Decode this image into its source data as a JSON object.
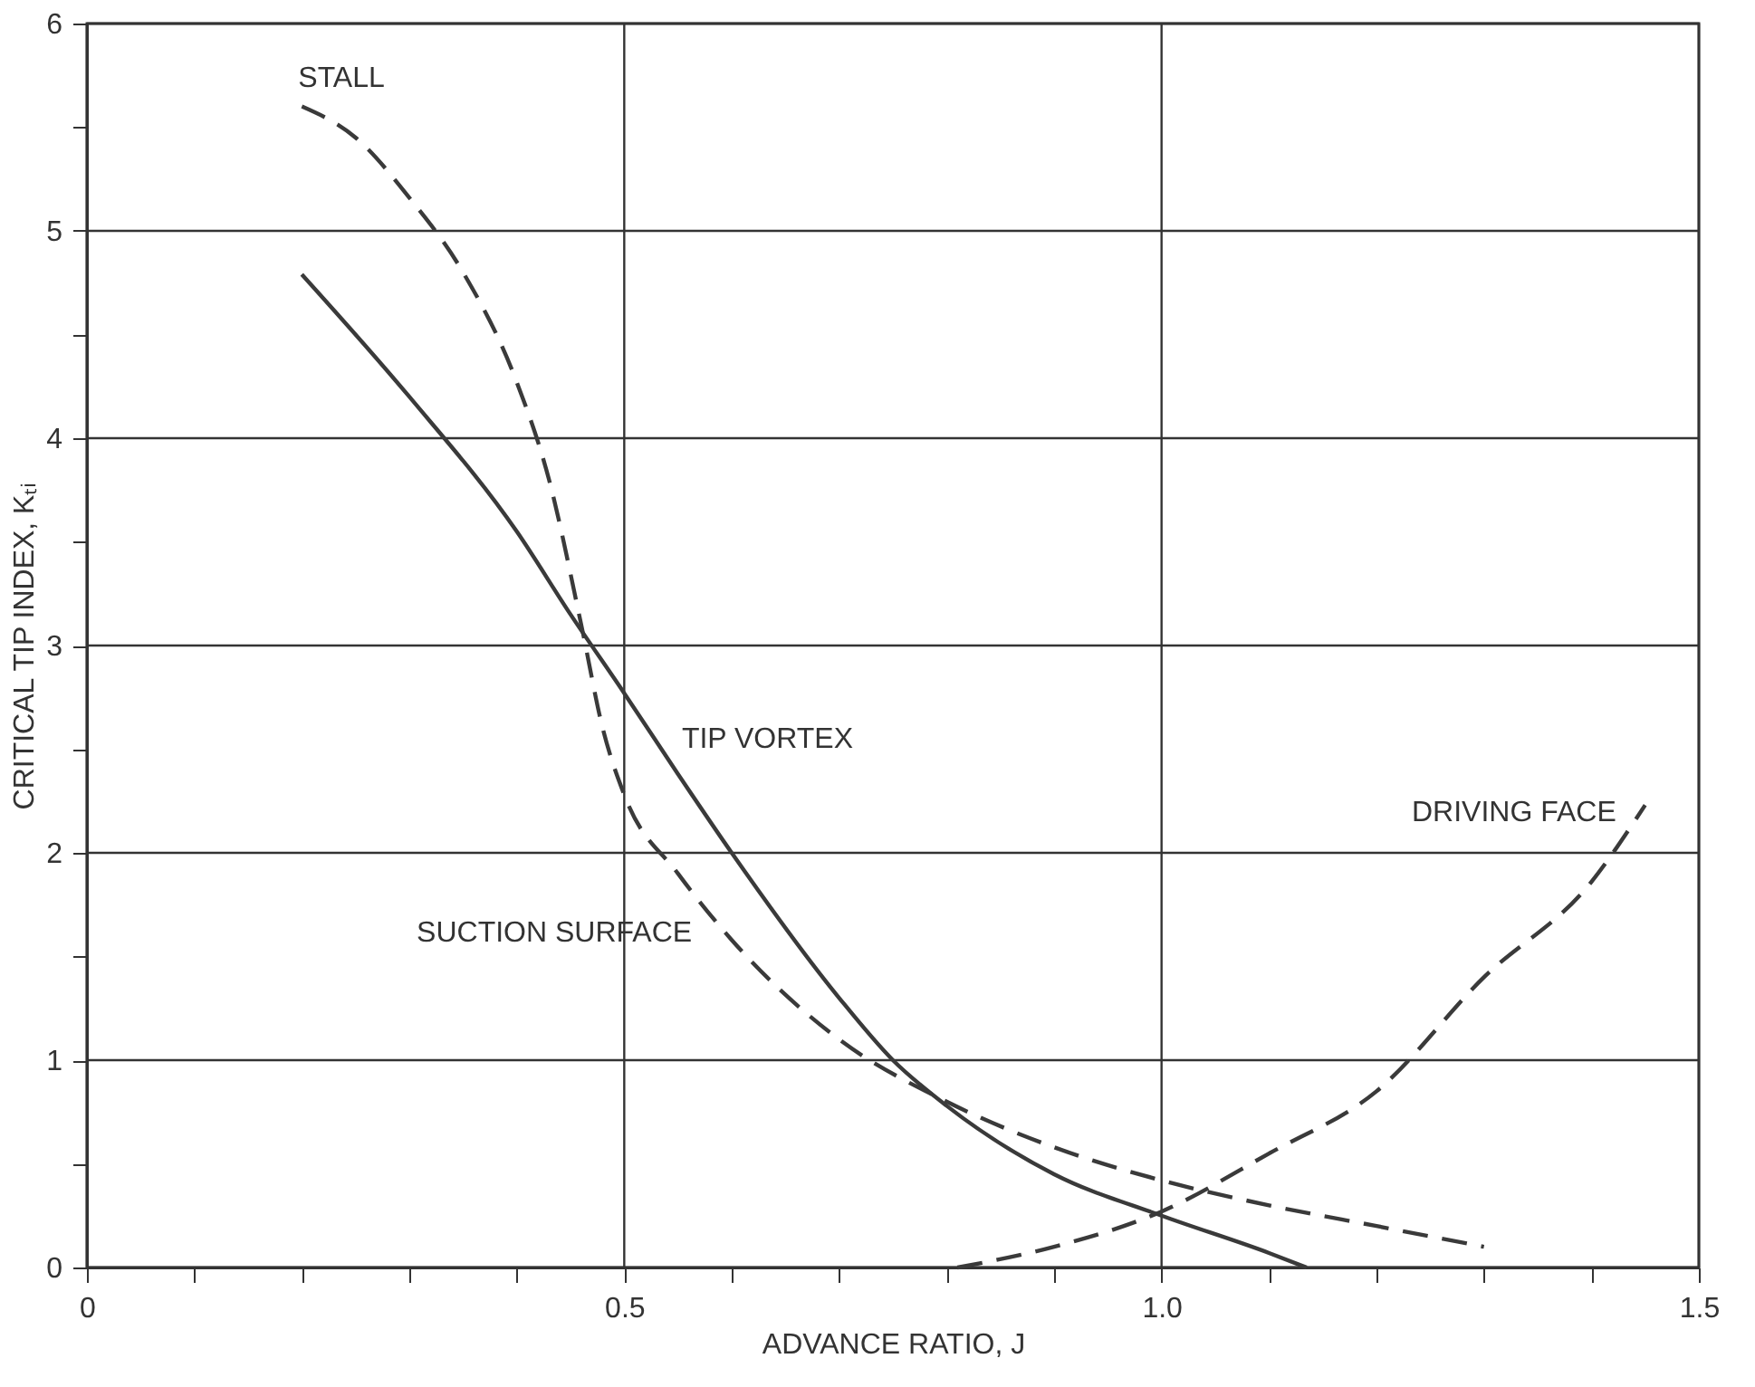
{
  "chart_data": {
    "type": "line",
    "xlabel": "ADVANCE RATIO, J",
    "ylabel": "CRITICAL TIP INDEX, Kₜᵢ",
    "xlim": [
      0,
      1.5
    ],
    "ylim": [
      0,
      6
    ],
    "xticks": [
      0,
      {
        "value": 0.1,
        "label": null
      },
      {
        "value": 0.2,
        "label": null
      },
      {
        "value": 0.3,
        "label": null
      },
      {
        "value": 0.4,
        "label": null
      },
      0.5,
      {
        "value": 0.6,
        "label": null
      },
      {
        "value": 0.7,
        "label": null
      },
      {
        "value": 0.8,
        "label": null
      },
      {
        "value": 0.9,
        "label": null
      },
      {
        "value": 1.0,
        "label": "1.0"
      },
      {
        "value": 1.1,
        "label": null
      },
      {
        "value": 1.2,
        "label": null
      },
      {
        "value": 1.3,
        "label": null
      },
      {
        "value": 1.4,
        "label": null
      },
      1.5
    ],
    "yticks": [
      0,
      {
        "value": 0.5,
        "label": null
      },
      1,
      {
        "value": 1.5,
        "label": null
      },
      2,
      {
        "value": 2.5,
        "label": null
      },
      3,
      {
        "value": 3.5,
        "label": null
      },
      4,
      {
        "value": 4.5,
        "label": null
      },
      5,
      {
        "value": 5.5,
        "label": null
      },
      6
    ],
    "grid": true,
    "series": [
      {
        "color": "#3a3a3a",
        "line_style": "solid",
        "x": [
          0.2,
          0.3,
          0.4,
          0.45,
          0.5,
          0.55,
          0.6,
          0.7,
          0.75,
          0.8,
          0.9,
          1.0,
          1.1,
          1.135
        ],
        "values": [
          4.79,
          4.2,
          3.55,
          3.15,
          2.77,
          2.38,
          2.0,
          1.3,
          1.0,
          0.78,
          0.45,
          0.25,
          0.07,
          0.0
        ]
      },
      {
        "color": "#3a3a3a",
        "line_style": "dashed",
        "x": [
          0.2,
          0.25,
          0.3,
          0.35,
          0.4,
          0.43,
          0.46,
          0.48,
          0.5,
          0.55,
          0.6,
          0.7,
          0.8,
          0.9,
          1.0,
          1.1,
          1.2,
          1.3
        ],
        "values": [
          5.6,
          5.45,
          5.16,
          4.8,
          4.27,
          3.8,
          3.1,
          2.6,
          2.28,
          1.9,
          1.58,
          1.1,
          0.8,
          0.58,
          0.42,
          0.3,
          0.2,
          0.1
        ]
      },
      {
        "color": "#3a3a3a",
        "line_style": "dashed",
        "x": [
          0.81,
          0.9,
          1.0,
          1.1,
          1.2,
          1.3,
          1.4,
          1.45
        ],
        "values": [
          0.0,
          0.1,
          0.27,
          0.55,
          0.85,
          1.4,
          1.86,
          2.23
        ]
      }
    ],
    "annotations": [
      {
        "text": "STALL",
        "x": 0.2,
        "y": 5.6
      },
      {
        "text": "TIP VORTEX",
        "x": 0.53,
        "y": 2.55
      },
      {
        "text": "SUCTION SURFACE",
        "x": 0.59,
        "y": 1.65
      },
      {
        "text": "DRIVING FACE",
        "x": 1.44,
        "y": 2.16
      }
    ]
  }
}
